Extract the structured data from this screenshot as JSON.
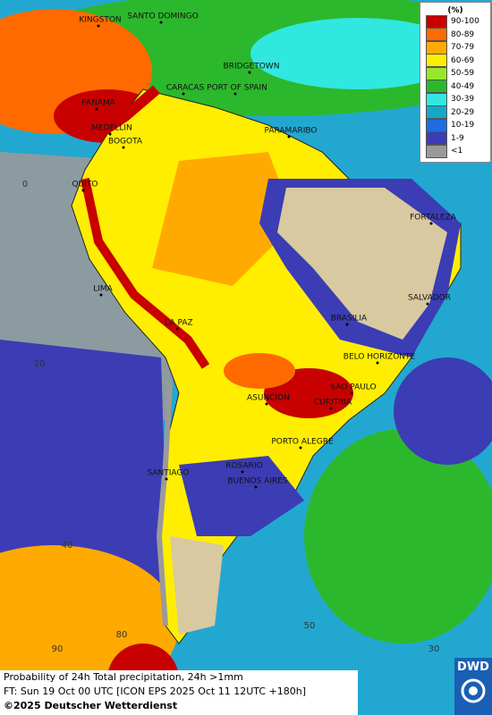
{
  "legend": {
    "title": "(%)",
    "items": [
      {
        "label": "90-100",
        "color": "#c80000"
      },
      {
        "label": "80-89",
        "color": "#ff6a00"
      },
      {
        "label": "70-79",
        "color": "#ffaa00"
      },
      {
        "label": "60-69",
        "color": "#ffee00"
      },
      {
        "label": "50-59",
        "color": "#9ae62c"
      },
      {
        "label": "40-49",
        "color": "#2cb82c"
      },
      {
        "label": "30-39",
        "color": "#30e8e0"
      },
      {
        "label": "20-29",
        "color": "#14a8c8"
      },
      {
        "label": "10-19",
        "color": "#1e6ee0"
      },
      {
        "label": "1-9",
        "color": "#3c3cb4"
      },
      {
        "label": "<1",
        "color": "#9a9a9a"
      }
    ]
  },
  "cities": [
    "KINGSTON",
    "SANTO DOMINGO",
    "BRIDGETOWN",
    "CARACAS",
    "PORT OF SPAIN",
    "PANAMA",
    "MEDELLIN",
    "BOGOTA",
    "PARAMARIBO",
    "QUITO",
    "FORTALEZA",
    "LIMA",
    "SALVADOR",
    "LA PAZ",
    "BRASILIA",
    "BELO HORIZONTE",
    "SAO PAULO",
    "ASUNCION",
    "CURITIBA",
    "PORTO ALEGRE",
    "ROSARIO",
    "SANTIAGO",
    "BUENOS AIRES"
  ],
  "grid_labels": [
    "0",
    "20",
    "40",
    "90",
    "80",
    "50",
    "30"
  ],
  "footer": {
    "line1": "Probability of 24h Total precipitation, 24h >1mm",
    "line2": "FT: Sun 19 Oct 00 UTC [ICON EPS 2025 Oct 11 12UTC +180h]",
    "copyright": "©2025 Deutscher Wetterdienst"
  },
  "logo": "DWD"
}
